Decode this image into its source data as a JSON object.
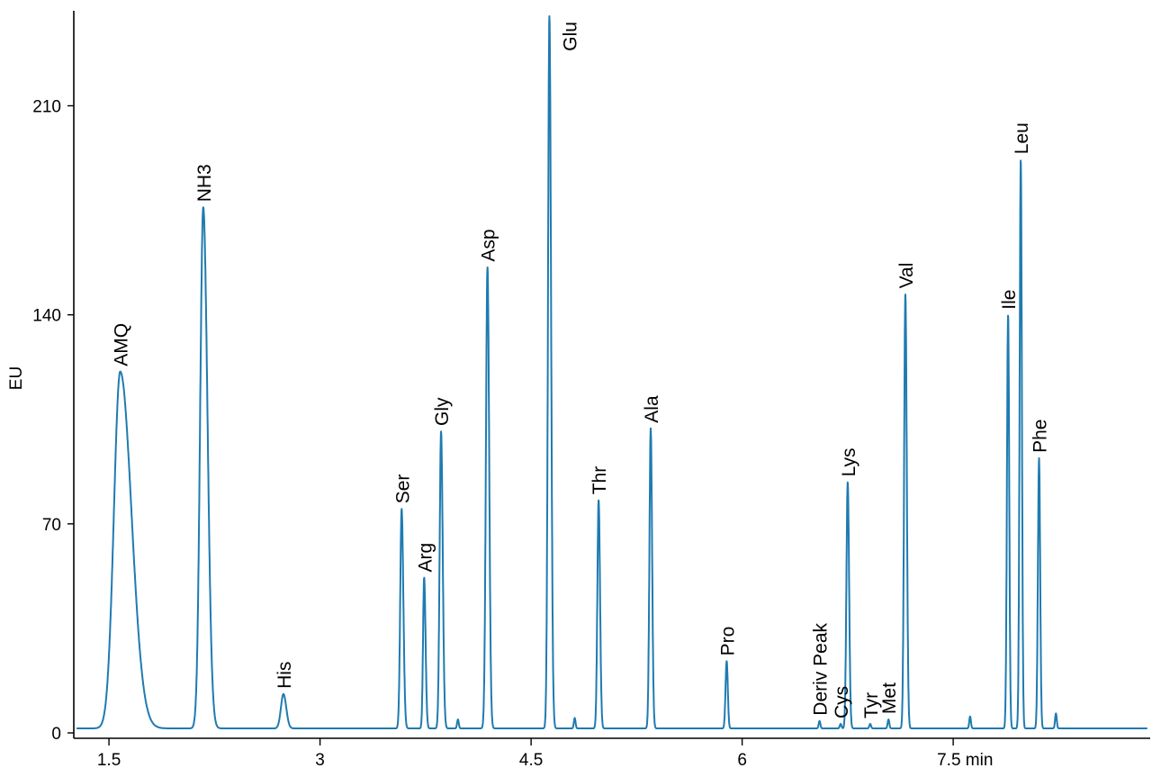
{
  "chart_data": {
    "type": "line",
    "title": "",
    "xlabel": "",
    "ylabel": "EU",
    "x_unit": "min",
    "xlim": [
      1.25,
      8.9
    ],
    "ylim": [
      0,
      240
    ],
    "x_ticks": [
      1.5,
      3,
      4.5,
      6,
      7.5
    ],
    "x_tick_labels": [
      "1.5",
      "3",
      "4.5",
      "6",
      "7.5 min"
    ],
    "y_ticks": [
      0,
      70,
      140,
      210
    ],
    "y_tick_labels": [
      "0",
      "70",
      "140",
      "210"
    ],
    "grid": false,
    "legend": "none",
    "colors": {
      "trace": "#1f7bb0",
      "axis": "#000000"
    },
    "series": [
      {
        "baseline": 1.5
      }
    ],
    "peaks": [
      {
        "label": "AMQ",
        "x": 1.58,
        "y": 121,
        "width": 0.045,
        "tail": 0.08
      },
      {
        "label": "NH3",
        "x": 2.17,
        "y": 176,
        "width": 0.022,
        "tail": 0.03
      },
      {
        "label": "His",
        "x": 2.74,
        "y": 13,
        "width": 0.018,
        "tail": 0.02
      },
      {
        "label": "Ser",
        "x": 3.58,
        "y": 75,
        "width": 0.01,
        "tail": 0.012
      },
      {
        "label": "Arg",
        "x": 3.74,
        "y": 52,
        "width": 0.008,
        "tail": 0.01
      },
      {
        "label": "Gly",
        "x": 3.86,
        "y": 101,
        "width": 0.01,
        "tail": 0.012
      },
      {
        "label": "Asp",
        "x": 4.19,
        "y": 156,
        "width": 0.011,
        "tail": 0.012
      },
      {
        "label": "Glu",
        "x": 4.63,
        "y": 240,
        "width": 0.01,
        "tail": 0.012
      },
      {
        "label": "Thr",
        "x": 4.98,
        "y": 78,
        "width": 0.009,
        "tail": 0.01
      },
      {
        "label": "Ala",
        "x": 5.35,
        "y": 102,
        "width": 0.009,
        "tail": 0.01
      },
      {
        "label": "Pro",
        "x": 5.89,
        "y": 24,
        "width": 0.008,
        "tail": 0.008
      },
      {
        "label": "Deriv Peak",
        "x": 6.55,
        "y": 4,
        "width": 0.006,
        "tail": 0.006
      },
      {
        "label": "Cys",
        "x": 6.7,
        "y": 3,
        "width": 0.006,
        "tail": 0.006
      },
      {
        "label": "Lys",
        "x": 6.75,
        "y": 84,
        "width": 0.009,
        "tail": 0.01
      },
      {
        "label": "Tyr",
        "x": 6.91,
        "y": 3,
        "width": 0.006,
        "tail": 0.006
      },
      {
        "label": "Met",
        "x": 7.04,
        "y": 4.5,
        "width": 0.006,
        "tail": 0.006
      },
      {
        "label": "Val",
        "x": 7.16,
        "y": 147,
        "width": 0.009,
        "tail": 0.01
      },
      {
        "label": "Ile",
        "x": 7.89,
        "y": 140,
        "width": 0.008,
        "tail": 0.008
      },
      {
        "label": "Leu",
        "x": 7.98,
        "y": 192,
        "width": 0.008,
        "tail": 0.008
      },
      {
        "label": "Phe",
        "x": 8.11,
        "y": 92,
        "width": 0.008,
        "tail": 0.008
      }
    ],
    "minor_peaks": [
      {
        "x": 3.98,
        "y": 4.5
      },
      {
        "x": 4.81,
        "y": 5
      },
      {
        "x": 5.1,
        "y": 1.5
      },
      {
        "x": 7.62,
        "y": 5.5
      },
      {
        "x": 8.23,
        "y": 6.5
      }
    ]
  }
}
